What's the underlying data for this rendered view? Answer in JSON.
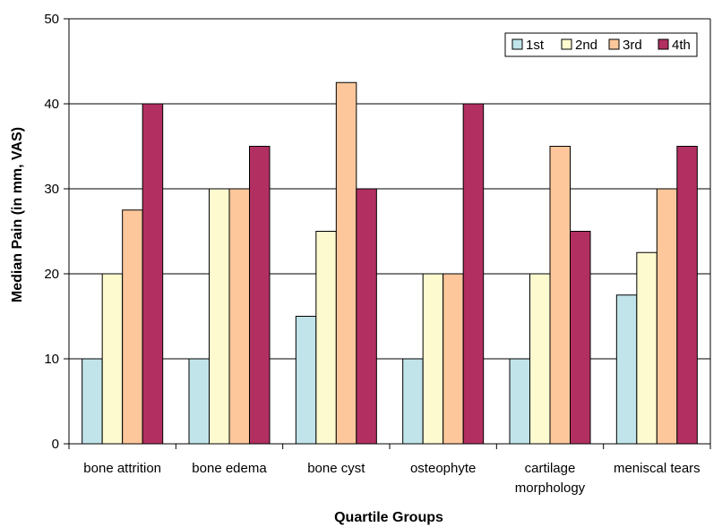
{
  "chart_data": {
    "type": "bar",
    "title": "",
    "xlabel": "Quartile Groups",
    "ylabel": "Median Pain (in mm, VAS)",
    "ylim": [
      0,
      50
    ],
    "yticks": [
      "0",
      "10",
      "20",
      "30",
      "40",
      "50"
    ],
    "grid": true,
    "legend_position": "top-right",
    "categories": [
      [
        "bone attrition"
      ],
      [
        "bone edema"
      ],
      [
        "bone cyst"
      ],
      [
        "osteophyte"
      ],
      [
        "cartilage",
        "morphology"
      ],
      [
        "meniscal tears"
      ]
    ],
    "series": [
      {
        "name": "1st",
        "color": "#c0e4ea",
        "values": [
          10,
          10,
          15,
          10,
          10,
          17.5
        ]
      },
      {
        "name": "2nd",
        "color": "#fdfad0",
        "values": [
          20,
          30,
          25,
          20,
          20,
          22.5
        ]
      },
      {
        "name": "3rd",
        "color": "#fdc79b",
        "values": [
          27.5,
          30,
          42.5,
          20,
          35,
          30
        ]
      },
      {
        "name": "4th",
        "color": "#b22f62",
        "values": [
          40,
          35,
          30,
          40,
          25,
          35
        ]
      }
    ]
  }
}
